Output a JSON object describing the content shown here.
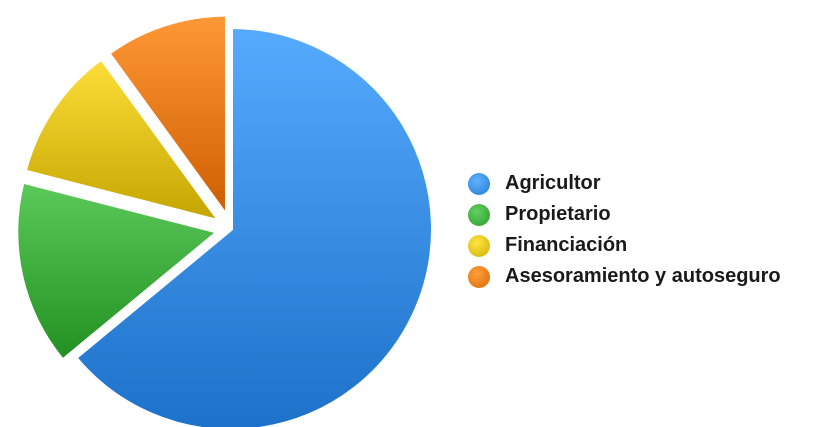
{
  "chart_data": {
    "type": "pie",
    "title": "",
    "categories": [
      "Agricultor",
      "Propietario",
      "Financiación",
      "Asesoramiento y autoseguro"
    ],
    "values": [
      64,
      15,
      11,
      10
    ],
    "colors": [
      "#3a8fe6",
      "#3fae3f",
      "#e2c21c",
      "#ec7c1a"
    ],
    "exploded": true,
    "legend_position": "right"
  }
}
